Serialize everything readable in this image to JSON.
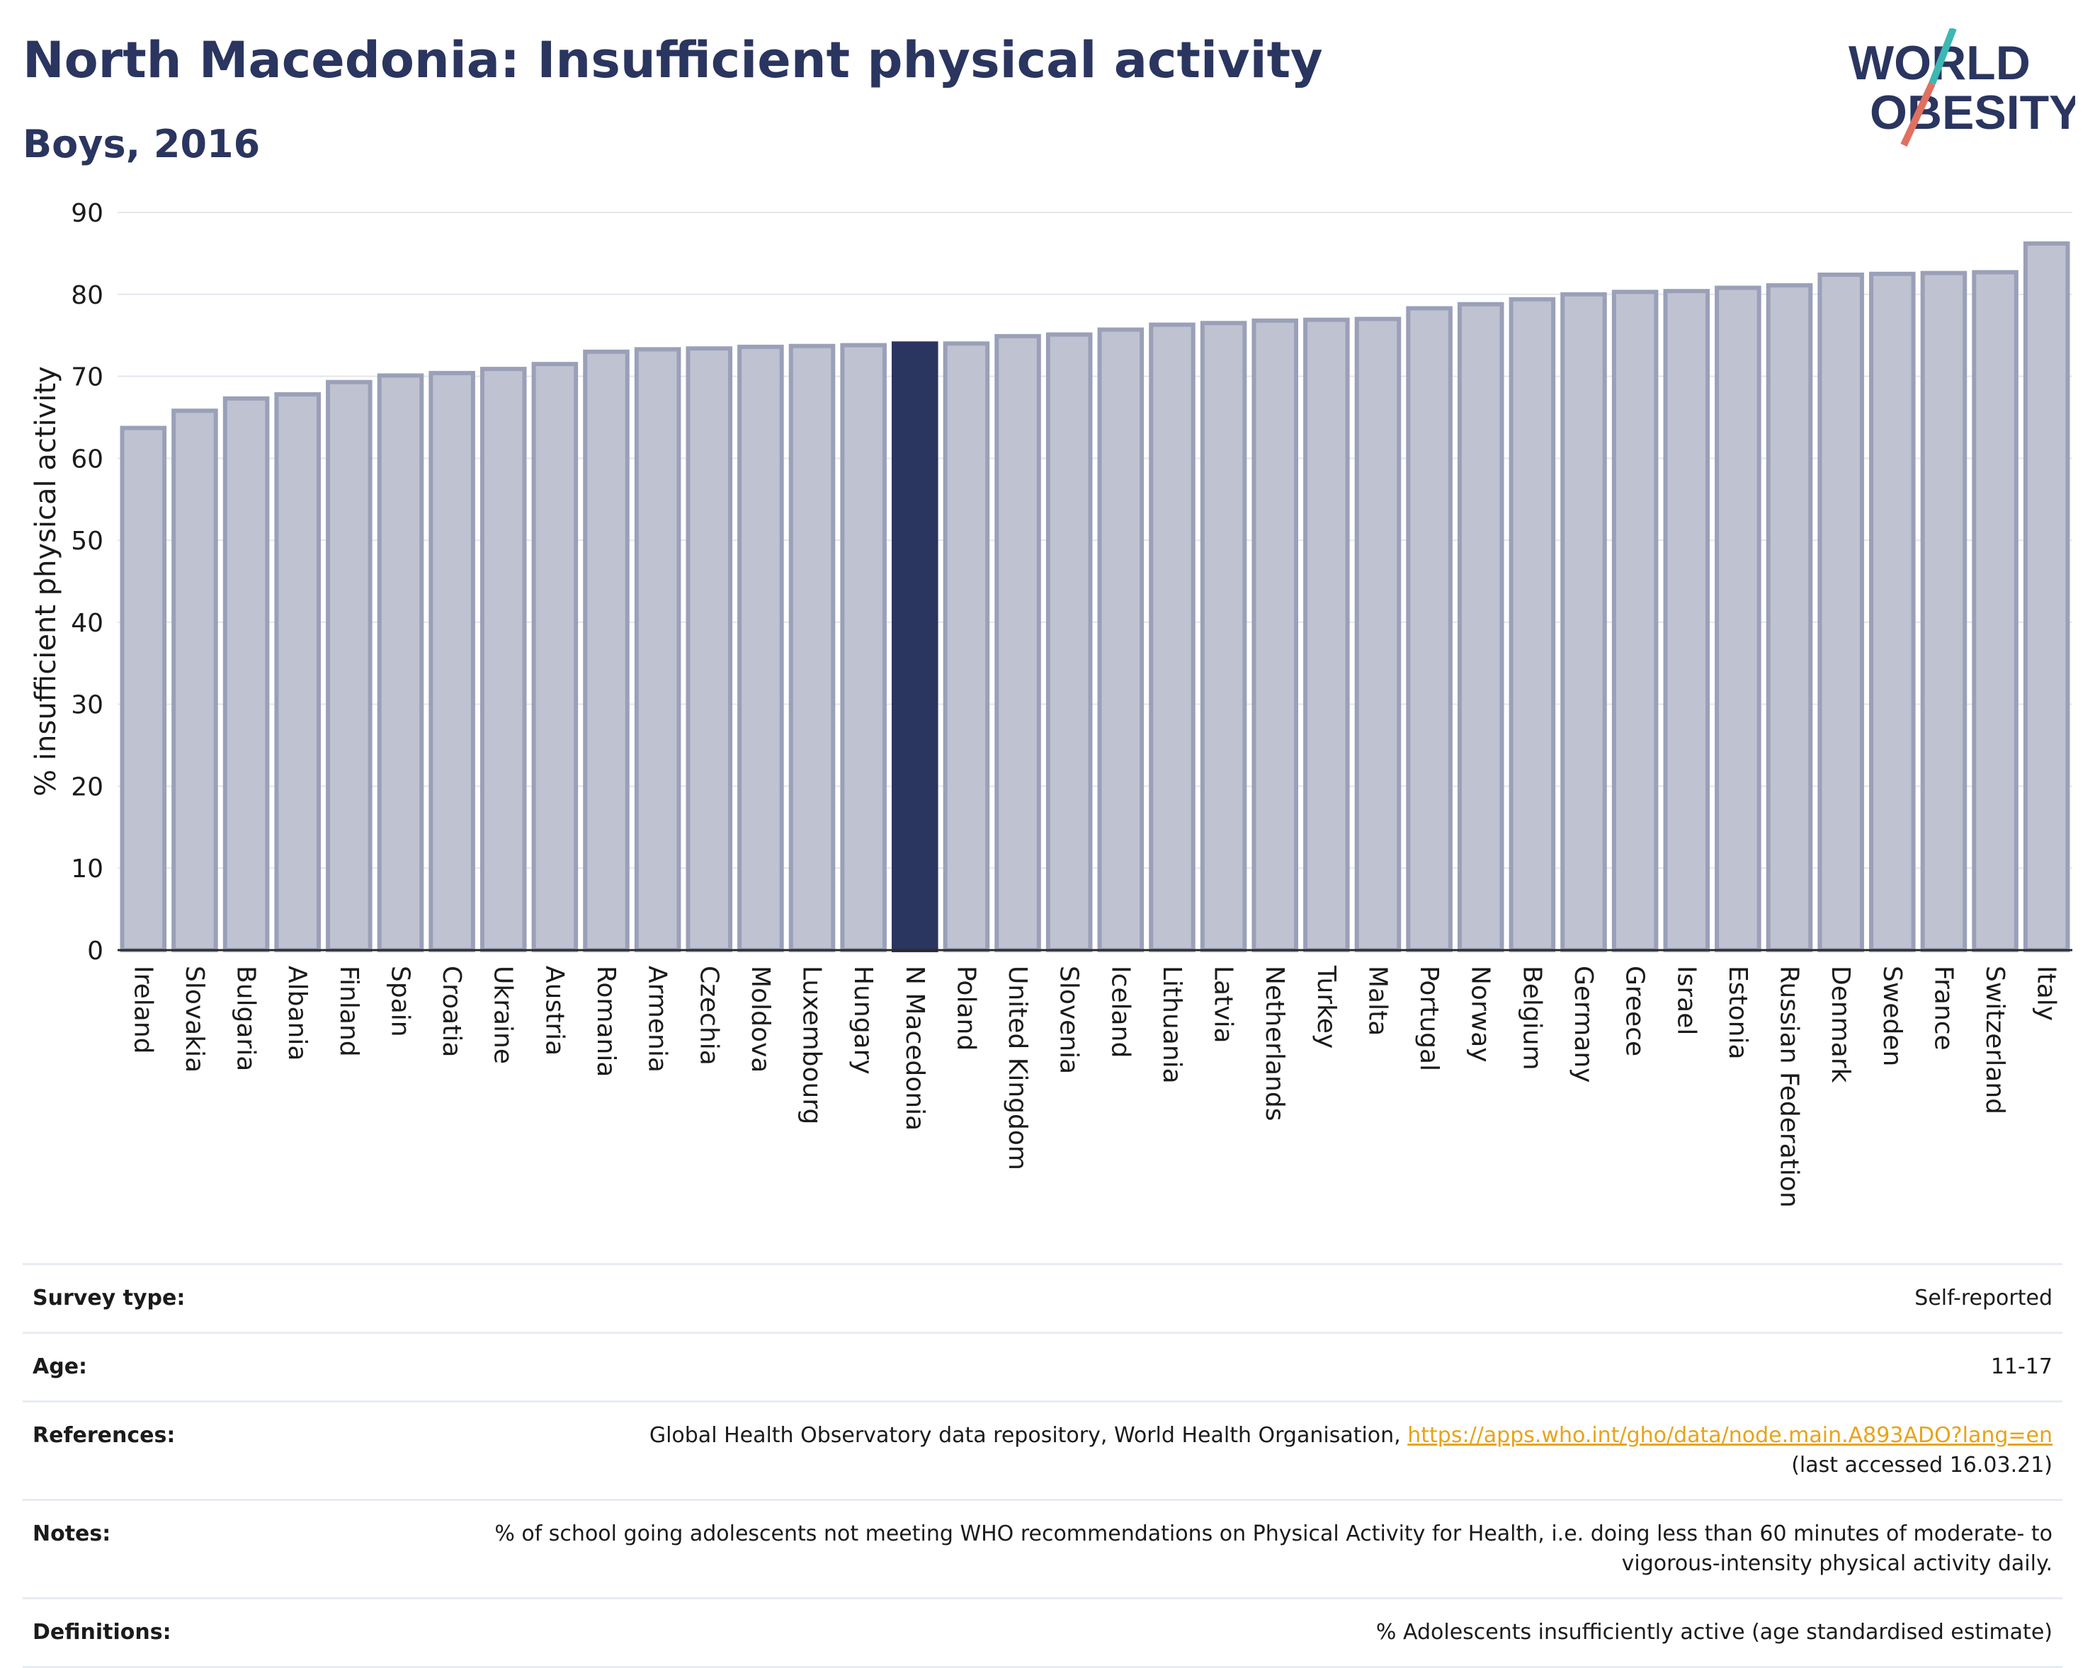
{
  "title": "North Macedonia: Insufficient physical activity",
  "subtitle": "Boys, 2016",
  "logo": {
    "line1": "WORLD",
    "line2": "OBESITY"
  },
  "colors": {
    "bar": "#bfc2d0",
    "bar_border": "#9aa0b8",
    "highlight": "#2a3560",
    "title": "#2a3560",
    "link": "#e8a317"
  },
  "chart_data": {
    "type": "bar",
    "ylabel": "% insufficient physical activity",
    "xlabel": "",
    "ylim": [
      0,
      90
    ],
    "yticks": [
      0,
      10,
      20,
      30,
      40,
      50,
      60,
      70,
      80,
      90
    ],
    "grid": true,
    "highlight": "N Macedonia",
    "categories": [
      "Ireland",
      "Slovakia",
      "Bulgaria",
      "Albania",
      "Finland",
      "Spain",
      "Croatia",
      "Ukraine",
      "Austria",
      "Romania",
      "Armenia",
      "Czechia",
      "Moldova",
      "Luxembourg",
      "Hungary",
      "N Macedonia",
      "Poland",
      "United Kingdom",
      "Slovenia",
      "Iceland",
      "Lithuania",
      "Latvia",
      "Netherlands",
      "Turkey",
      "Malta",
      "Portugal",
      "Norway",
      "Belgium",
      "Germany",
      "Greece",
      "Israel",
      "Estonia",
      "Russian Federation",
      "Denmark",
      "Sweden",
      "France",
      "Switzerland",
      "Italy"
    ],
    "values": [
      63.7,
      65.8,
      67.3,
      67.8,
      69.3,
      70.1,
      70.4,
      70.9,
      71.5,
      73.0,
      73.3,
      73.4,
      73.6,
      73.7,
      73.8,
      74.0,
      74.0,
      74.9,
      75.1,
      75.7,
      76.3,
      76.5,
      76.8,
      76.9,
      77.0,
      78.3,
      78.8,
      79.4,
      80.0,
      80.3,
      80.4,
      80.8,
      81.1,
      82.4,
      82.5,
      82.6,
      82.7,
      86.2
    ]
  },
  "info": [
    {
      "label": "Survey type:",
      "value": "Self-reported"
    },
    {
      "label": "Age:",
      "value": "11-17"
    },
    {
      "label": "References:",
      "value": "Global Health Observatory data repository, World Health Organisation,",
      "link": "https://apps.who.int/gho/data/node.main.A893ADO?lang=en",
      "value2": "(last accessed 16.03.21)"
    },
    {
      "label": "Notes:",
      "value": "% of school going adolescents not meeting WHO recommendations on Physical Activity for Health, i.e. doing less than 60 minutes of moderate- to vigorous-intensity physical activity daily."
    },
    {
      "label": "Definitions:",
      "value": "% Adolescents insufficiently active (age standardised estimate)"
    }
  ]
}
